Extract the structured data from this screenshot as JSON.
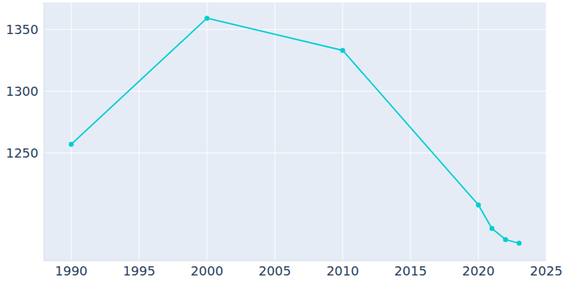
{
  "chart_data": {
    "type": "line",
    "x": [
      1990,
      2000,
      2010,
      2020,
      2021,
      2022,
      2023
    ],
    "values": [
      1257,
      1359,
      1333,
      1208,
      1189,
      1180,
      1177
    ],
    "color": "#00ced1",
    "marker": "circle",
    "xlim": [
      1988,
      2025
    ],
    "xticks": [
      1990,
      1995,
      2000,
      2005,
      2010,
      2015,
      2020,
      2025
    ],
    "ylim": [
      1163,
      1372
    ],
    "yticks": [
      1250,
      1300,
      1350
    ],
    "grid": true
  }
}
